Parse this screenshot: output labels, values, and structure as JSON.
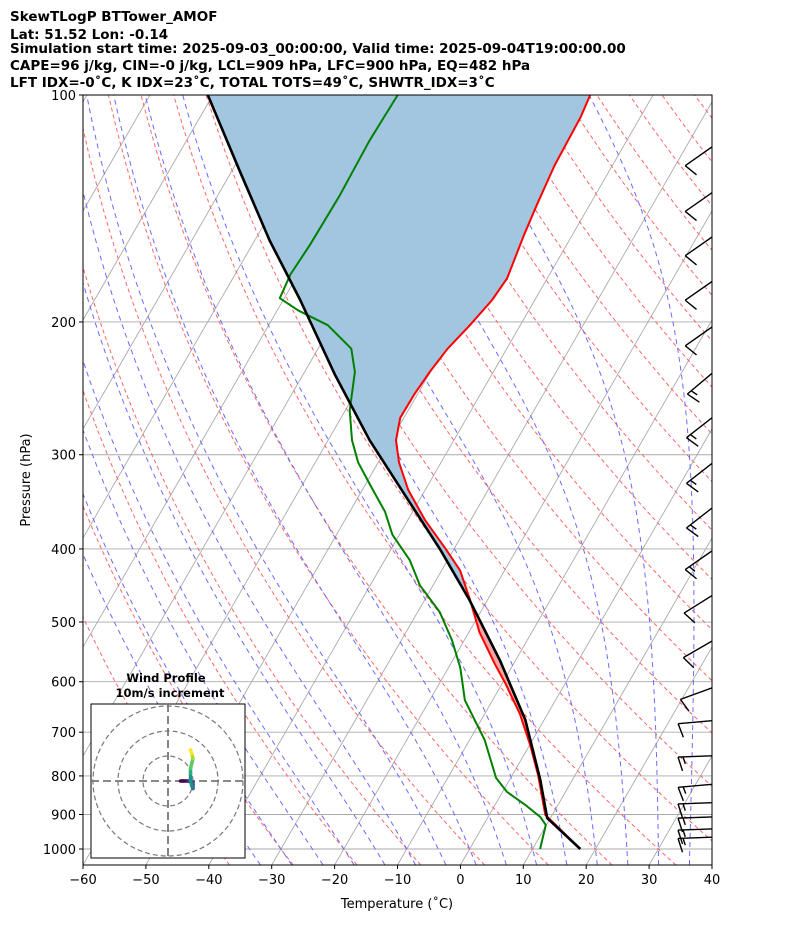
{
  "header": {
    "line1": "SkewTLogP BTTower_AMOF",
    "line2": "Lat: 51.52   Lon: -0.14",
    "line3": "Simulation start time: 2025-09-03_00:00:00, Valid time: 2025-09-04T19:00:00.00",
    "line4": "CAPE=96 j/kg, CIN=-0 j/kg, LCL=909 hPa, LFC=900 hPa, EQ=482 hPa",
    "line5": "LFT IDX=-0˚C, K IDX=23˚C, TOTAL TOTS=49˚C, SHWTR_IDX=3˚C"
  },
  "chart_data": {
    "type": "line",
    "subtype": "skewT-logP",
    "xlabel": "Temperature (˚C)",
    "ylabel": "Pressure (hPa)",
    "xlim": [
      -60,
      40
    ],
    "ylim": [
      1050,
      100
    ],
    "xticks": [
      -60,
      -50,
      -40,
      -30,
      -20,
      -10,
      0,
      10,
      20,
      30,
      40
    ],
    "yticks": [
      100,
      200,
      300,
      400,
      500,
      600,
      700,
      800,
      900,
      1000
    ],
    "grid": true,
    "colors": {
      "temperature": "#ff0000",
      "dewpoint": "#008000",
      "parcel": "#000000",
      "cape": "#f4a6a6",
      "cin": "#a2c6df",
      "dry_adiabat": "#ff6666",
      "moist_adiabat": "#6a6aff",
      "isotherm": "#aaaaaa"
    },
    "temperature": {
      "p": [
        1000,
        901,
        798,
        728,
        662,
        602,
        570,
        516,
        465,
        427,
        399,
        366,
        334,
        307,
        287,
        268,
        249,
        233,
        217,
        202,
        187,
        175,
        153,
        140,
        124,
        107,
        100
      ],
      "T": [
        17.6,
        8.9,
        4.1,
        0.1,
        -4.4,
        -9.6,
        -12.8,
        -18.3,
        -23.0,
        -27.1,
        -31.5,
        -37.3,
        -42.7,
        -46.7,
        -49.2,
        -50.6,
        -50.5,
        -50.1,
        -49.4,
        -48.0,
        -46.8,
        -46.4,
        -47.7,
        -48.4,
        -49.2,
        -49.5,
        -50.0
      ]
    },
    "dewpoint": {
      "p": [
        1000,
        929,
        907,
        874,
        840,
        805,
        717,
        635,
        575,
        528,
        485,
        447,
        414,
        383,
        357,
        329,
        307,
        287,
        262,
        233,
        217,
        202,
        193,
        186,
        173,
        158,
        136,
        115,
        100
      ],
      "Td": [
        11.2,
        9.9,
        8.3,
        4.8,
        0.7,
        -2.3,
        -7.6,
        -14.4,
        -18.1,
        -22.0,
        -26.5,
        -32.1,
        -36.0,
        -41.1,
        -44.4,
        -49.2,
        -53.2,
        -56.2,
        -59.3,
        -62.0,
        -64.7,
        -70.6,
        -76.7,
        -80.7,
        -81.2,
        -80.8,
        -80.6,
        -80.9,
        -80.6
      ]
    },
    "parcel": {
      "p": [
        1000,
        910,
        810,
        674,
        562,
        468,
        401,
        339,
        287,
        235,
        187,
        156,
        126,
        100
      ],
      "T": [
        17.6,
        9.5,
        4.9,
        -3.0,
        -12.5,
        -22.8,
        -32.1,
        -42.8,
        -53.4,
        -64.9,
        -77.3,
        -87.6,
        -98.8,
        -110.8
      ]
    },
    "lcl_hpa": 909,
    "eq_hpa": 482,
    "wind_barbs": [
      {
        "p": 120,
        "dir": 235,
        "speed_kt": 10
      },
      {
        "p": 138,
        "dir": 235,
        "speed_kt": 10
      },
      {
        "p": 158,
        "dir": 235,
        "speed_kt": 10
      },
      {
        "p": 181,
        "dir": 235,
        "speed_kt": 10
      },
      {
        "p": 208,
        "dir": 235,
        "speed_kt": 10
      },
      {
        "p": 239,
        "dir": 230,
        "speed_kt": 15
      },
      {
        "p": 274,
        "dir": 232,
        "speed_kt": 15
      },
      {
        "p": 315,
        "dir": 232,
        "speed_kt": 15
      },
      {
        "p": 361,
        "dir": 232,
        "speed_kt": 15
      },
      {
        "p": 412,
        "dir": 235,
        "speed_kt": 15
      },
      {
        "p": 473,
        "dir": 238,
        "speed_kt": 10
      },
      {
        "p": 544,
        "dir": 240,
        "speed_kt": 10
      },
      {
        "p": 630,
        "dir": 250,
        "speed_kt": 10
      },
      {
        "p": 700,
        "dir": 265,
        "speed_kt": 10
      },
      {
        "p": 780,
        "dir": 268,
        "speed_kt": 15
      },
      {
        "p": 850,
        "dir": 265,
        "speed_kt": 15
      },
      {
        "p": 900,
        "dir": 268,
        "speed_kt": 15
      },
      {
        "p": 940,
        "dir": 268,
        "speed_kt": 15
      },
      {
        "p": 975,
        "dir": 268,
        "speed_kt": 15
      },
      {
        "p": 1000,
        "dir": 268,
        "speed_kt": 15
      }
    ],
    "hodograph": {
      "title": "Wind Profile",
      "subtitle": "10m/s increment",
      "ring_step_ms": 10,
      "rings": 3,
      "u": [
        5,
        6,
        8,
        10,
        10,
        10,
        9.5,
        9,
        9,
        9,
        9.5,
        10,
        9.5,
        9
      ],
      "v": [
        0,
        0,
        0,
        -0.5,
        -1.5,
        -3,
        -2,
        0,
        3,
        5,
        7,
        9,
        11,
        12.5
      ]
    }
  }
}
